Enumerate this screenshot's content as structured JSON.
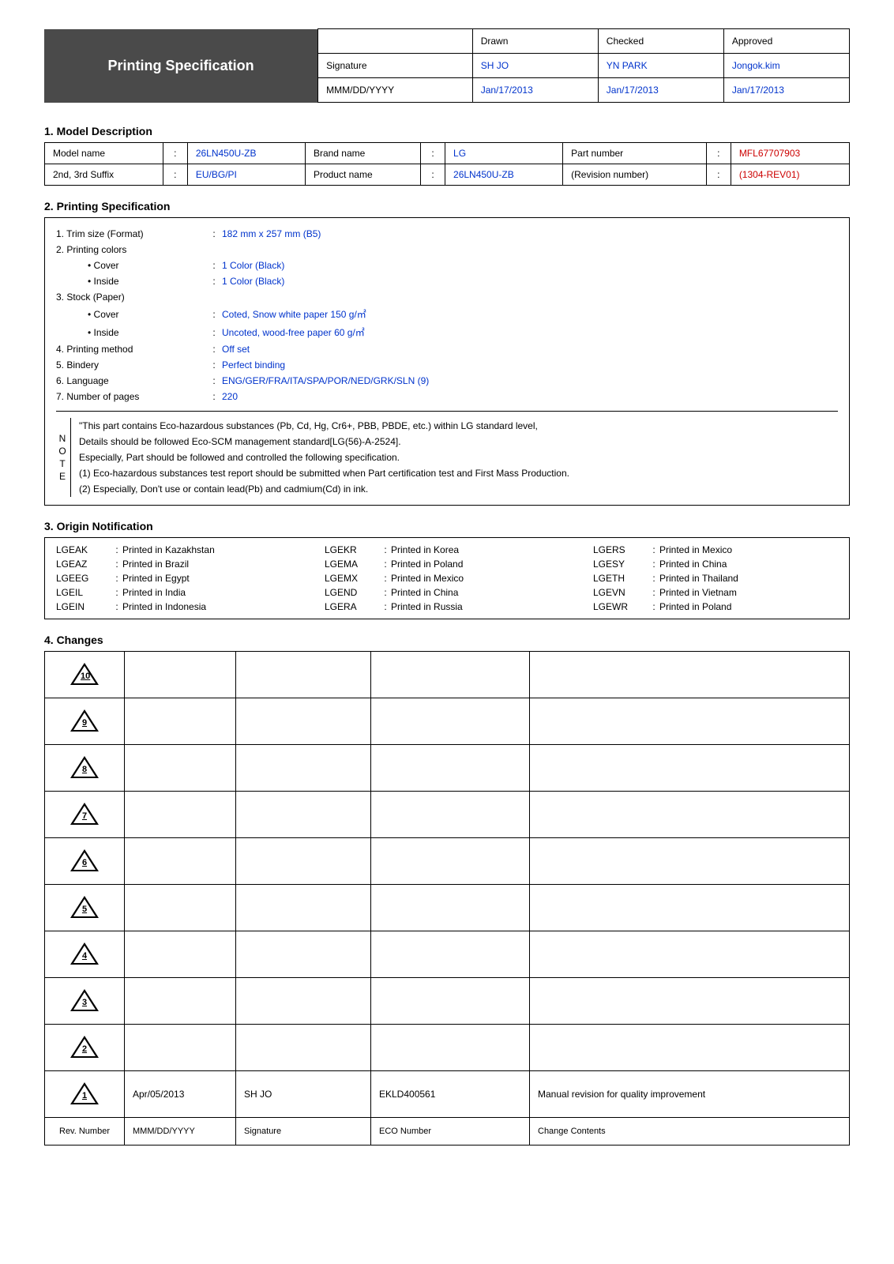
{
  "colors": {
    "blue": "#0033cc",
    "red": "#cc0000",
    "title_bg": "#4a4a4a"
  },
  "top": {
    "title": "Printing Specification",
    "headers": [
      "Drawn",
      "Checked",
      "Approved"
    ],
    "row_sig_label": "Signature",
    "row_sig": [
      "SH JO",
      "YN PARK",
      "Jongok.kim"
    ],
    "row_date_label": "MMM/DD/YYYY",
    "row_date": [
      "Jan/17/2013",
      "Jan/17/2013",
      "Jan/17/2013"
    ]
  },
  "sec1": {
    "title": "1. Model Description",
    "r1": {
      "k1": "Model name",
      "v1": "26LN450U-ZB",
      "k2": "Brand name",
      "v2": "LG",
      "k3": "Part number",
      "v3": "MFL67707903"
    },
    "r2": {
      "k1": "2nd, 3rd Suffix",
      "v1": "EU/BG/PI",
      "k2": "Product name",
      "v2": "26LN450U-ZB",
      "k3": "(Revision number)",
      "v3": "(1304-REV01)"
    }
  },
  "sec2": {
    "title": "2. Printing Specification",
    "items": [
      {
        "lbl": "1. Trim size (Format)",
        "val": "182 mm x 257 mm (B5)",
        "blue": true
      },
      {
        "lbl": "2. Printing colors",
        "val": "",
        "blue": false
      },
      {
        "lbl": "• Cover",
        "indent": true,
        "val": "1 Color (Black)",
        "blue": true
      },
      {
        "lbl": "• Inside",
        "indent": true,
        "val": "1 Color (Black)",
        "blue": true
      },
      {
        "lbl": "3. Stock (Paper)",
        "val": "",
        "blue": false
      },
      {
        "lbl": "• Cover",
        "indent": true,
        "val": "Coted, Snow white paper 150 g/㎡",
        "blue": true
      },
      {
        "lbl": "• Inside",
        "indent": true,
        "val": "Uncoted, wood-free paper 60 g/㎡",
        "blue": true
      },
      {
        "lbl": "4. Printing method",
        "val": "Off set",
        "blue": true
      },
      {
        "lbl": "5. Bindery",
        "val": "Perfect binding",
        "blue": true
      },
      {
        "lbl": "6. Language",
        "val": "ENG/GER/FRA/ITA/SPA/POR/NED/GRK/SLN (9)",
        "blue": true
      },
      {
        "lbl": "7. Number of pages",
        "val": "220",
        "blue": true
      }
    ],
    "note_side": [
      "N",
      "O",
      "T",
      "E"
    ],
    "notes": [
      "\"This part contains Eco-hazardous substances (Pb, Cd, Hg, Cr6+, PBB, PBDE, etc.) within LG standard level,",
      "Details should be followed Eco-SCM management standard[LG(56)-A-2524].",
      "Especially, Part should be followed and controlled the following specification.",
      "(1) Eco-hazardous substances test report should be submitted when Part certification test and First Mass Production.",
      "(2) Especially, Don't use or contain lead(Pb) and cadmium(Cd) in ink."
    ]
  },
  "sec3": {
    "title": "3. Origin Notification",
    "items": [
      {
        "code": "LGEAK",
        "txt": "Printed in Kazakhstan"
      },
      {
        "code": "LGEKR",
        "txt": "Printed in Korea"
      },
      {
        "code": "LGERS",
        "txt": "Printed in Mexico"
      },
      {
        "code": "LGEAZ",
        "txt": "Printed in Brazil"
      },
      {
        "code": "LGEMA",
        "txt": "Printed in Poland"
      },
      {
        "code": "LGESY",
        "txt": "Printed in China"
      },
      {
        "code": "LGEEG",
        "txt": "Printed in Egypt"
      },
      {
        "code": "LGEMX",
        "txt": "Printed in Mexico"
      },
      {
        "code": "LGETH",
        "txt": "Printed in Thailand"
      },
      {
        "code": "LGEIL",
        "txt": "Printed in India"
      },
      {
        "code": "LGEND",
        "txt": "Printed in China"
      },
      {
        "code": "LGEVN",
        "txt": "Printed in Vietnam"
      },
      {
        "code": "LGEIN",
        "txt": "Printed in Indonesia"
      },
      {
        "code": "LGERA",
        "txt": "Printed in Russia"
      },
      {
        "code": "LGEWR",
        "txt": "Printed in Poland"
      }
    ]
  },
  "sec4": {
    "title": "4. Changes",
    "rows": [
      {
        "n": "10",
        "date": "",
        "sig": "",
        "eco": "",
        "desc": ""
      },
      {
        "n": "9",
        "date": "",
        "sig": "",
        "eco": "",
        "desc": ""
      },
      {
        "n": "8",
        "date": "",
        "sig": "",
        "eco": "",
        "desc": ""
      },
      {
        "n": "7",
        "date": "",
        "sig": "",
        "eco": "",
        "desc": ""
      },
      {
        "n": "6",
        "date": "",
        "sig": "",
        "eco": "",
        "desc": ""
      },
      {
        "n": "5",
        "date": "",
        "sig": "",
        "eco": "",
        "desc": ""
      },
      {
        "n": "4",
        "date": "",
        "sig": "",
        "eco": "",
        "desc": ""
      },
      {
        "n": "3",
        "date": "",
        "sig": "",
        "eco": "",
        "desc": ""
      },
      {
        "n": "2",
        "date": "",
        "sig": "",
        "eco": "",
        "desc": ""
      },
      {
        "n": "1",
        "date": "Apr/05/2013",
        "sig": "SH JO",
        "eco": "EKLD400561",
        "desc": "Manual revision for quality improvement"
      }
    ],
    "footer": {
      "rev": "Rev. Number",
      "date": "MMM/DD/YYYY",
      "sig": "Signature",
      "eco": "ECO Number",
      "desc": "Change Contents"
    }
  }
}
